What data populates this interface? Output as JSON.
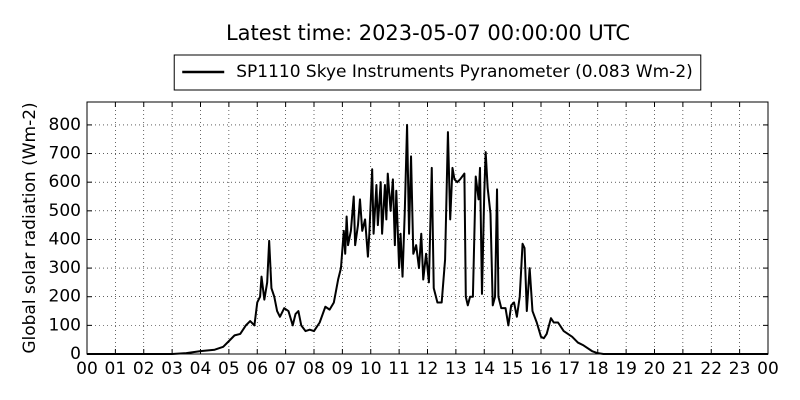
{
  "chart_data": {
    "type": "line",
    "title": "Latest time: 2023-05-07 00:00:00 UTC",
    "y_label": "Global solar radiation (Wm-2)",
    "legend": "upper center",
    "grid": true,
    "x": [
      0,
      3.0,
      3.5,
      4.0,
      4.5,
      4.8,
      5.0,
      5.2,
      5.4,
      5.6,
      5.75,
      5.9,
      6.0,
      6.1,
      6.15,
      6.25,
      6.35,
      6.42,
      6.5,
      6.6,
      6.7,
      6.8,
      6.95,
      7.1,
      7.25,
      7.35,
      7.45,
      7.55,
      7.7,
      7.85,
      8.0,
      8.2,
      8.4,
      8.55,
      8.7,
      8.85,
      8.95,
      9.05,
      9.1,
      9.15,
      9.2,
      9.3,
      9.4,
      9.45,
      9.55,
      9.62,
      9.7,
      9.8,
      9.9,
      9.95,
      10.05,
      10.1,
      10.2,
      10.25,
      10.35,
      10.4,
      10.5,
      10.55,
      10.6,
      10.7,
      10.78,
      10.85,
      10.9,
      11.0,
      11.05,
      11.12,
      11.2,
      11.28,
      11.35,
      11.42,
      11.5,
      11.6,
      11.7,
      11.78,
      11.85,
      11.95,
      12.05,
      12.15,
      12.22,
      12.35,
      12.5,
      12.62,
      12.72,
      12.8,
      12.88,
      12.95,
      13.05,
      13.15,
      13.3,
      13.35,
      13.42,
      13.5,
      13.6,
      13.7,
      13.8,
      13.85,
      13.92,
      14.0,
      14.05,
      14.12,
      14.22,
      14.3,
      14.38,
      14.45,
      14.5,
      14.6,
      14.75,
      14.85,
      14.95,
      15.05,
      15.15,
      15.25,
      15.35,
      15.42,
      15.5,
      15.6,
      15.7,
      15.85,
      16.0,
      16.1,
      16.2,
      16.35,
      16.45,
      16.6,
      16.8,
      17.1,
      17.3,
      17.5,
      17.8,
      18.0,
      18.2,
      24
    ],
    "series": [
      {
        "name": "SP1110 Skye Instruments Pyranometer (0.083 Wm-2)",
        "color": "#000000",
        "values": [
          0,
          0,
          3,
          10,
          15,
          25,
          45,
          65,
          70,
          100,
          115,
          100,
          180,
          200,
          270,
          190,
          250,
          395,
          230,
          200,
          150,
          130,
          160,
          150,
          100,
          140,
          150,
          100,
          80,
          85,
          80,
          110,
          165,
          155,
          180,
          260,
          300,
          430,
          350,
          480,
          380,
          430,
          550,
          380,
          450,
          540,
          430,
          470,
          340,
          420,
          645,
          420,
          590,
          450,
          600,
          420,
          590,
          470,
          630,
          500,
          610,
          380,
          570,
          300,
          420,
          270,
          500,
          800,
          420,
          690,
          350,
          380,
          300,
          420,
          260,
          350,
          250,
          650,
          230,
          180,
          180,
          330,
          775,
          470,
          650,
          610,
          600,
          610,
          630,
          200,
          170,
          200,
          200,
          620,
          540,
          650,
          210,
          560,
          705,
          580,
          490,
          170,
          200,
          575,
          200,
          160,
          160,
          100,
          170,
          180,
          130,
          200,
          385,
          370,
          150,
          300,
          150,
          110,
          60,
          55,
          70,
          125,
          110,
          110,
          80,
          60,
          40,
          30,
          10,
          3,
          0,
          0
        ]
      }
    ],
    "xlim": [
      0,
      24
    ],
    "xticks": [
      {
        "value": 0,
        "label": "00"
      },
      {
        "value": 1,
        "label": "01"
      },
      {
        "value": 2,
        "label": "02"
      },
      {
        "value": 3,
        "label": "03"
      },
      {
        "value": 4,
        "label": "04"
      },
      {
        "value": 5,
        "label": "05"
      },
      {
        "value": 6,
        "label": "06"
      },
      {
        "value": 7,
        "label": "07"
      },
      {
        "value": 8,
        "label": "08"
      },
      {
        "value": 9,
        "label": "09"
      },
      {
        "value": 10,
        "label": "10"
      },
      {
        "value": 11,
        "label": "11"
      },
      {
        "value": 12,
        "label": "12"
      },
      {
        "value": 13,
        "label": "13"
      },
      {
        "value": 14,
        "label": "14"
      },
      {
        "value": 15,
        "label": "15"
      },
      {
        "value": 16,
        "label": "16"
      },
      {
        "value": 17,
        "label": "17"
      },
      {
        "value": 18,
        "label": "18"
      },
      {
        "value": 19,
        "label": "19"
      },
      {
        "value": 20,
        "label": "20"
      },
      {
        "value": 21,
        "label": "21"
      },
      {
        "value": 22,
        "label": "22"
      },
      {
        "value": 23,
        "label": "23"
      },
      {
        "value": 24,
        "label": "00"
      }
    ],
    "ylim": [
      0,
      880
    ],
    "yticks": [
      0,
      100,
      200,
      300,
      400,
      500,
      600,
      700,
      800
    ]
  }
}
